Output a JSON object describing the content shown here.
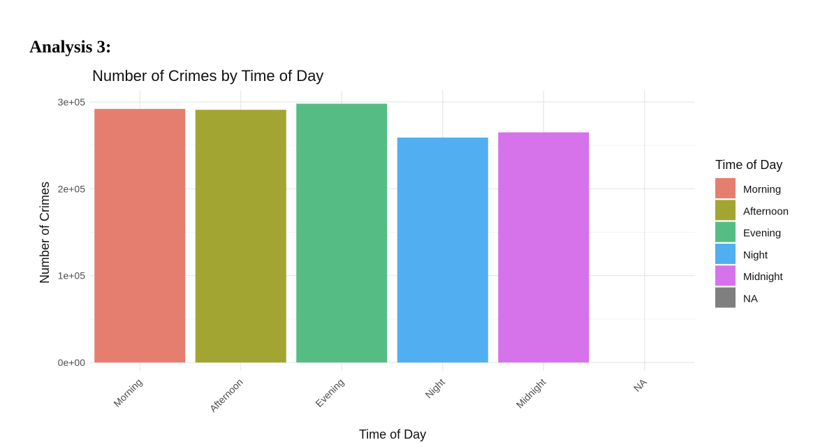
{
  "heading": "Analysis 3:",
  "chart_data": {
    "type": "bar",
    "title": "Number of Crimes by Time of Day",
    "xlabel": "Time of Day",
    "ylabel": "Number of Crimes",
    "categories": [
      "Morning",
      "Afternoon",
      "Evening",
      "Night",
      "Midnight",
      "NA"
    ],
    "values": [
      292000,
      291000,
      298000,
      259000,
      265000,
      0
    ],
    "colors": [
      "#E67E6F",
      "#A3A533",
      "#55BD84",
      "#51AEF0",
      "#D672EA",
      "#7F7F7F"
    ],
    "ylim": [
      0,
      300000
    ],
    "yticks": [
      0,
      100000,
      200000,
      300000
    ],
    "ytick_labels": [
      "0e+00",
      "1e+05",
      "2e+05",
      "3e+05"
    ],
    "grid": true,
    "legend": {
      "title": "Time of Day",
      "position": "right",
      "entries": [
        "Morning",
        "Afternoon",
        "Evening",
        "Night",
        "Midnight",
        "NA"
      ]
    }
  }
}
